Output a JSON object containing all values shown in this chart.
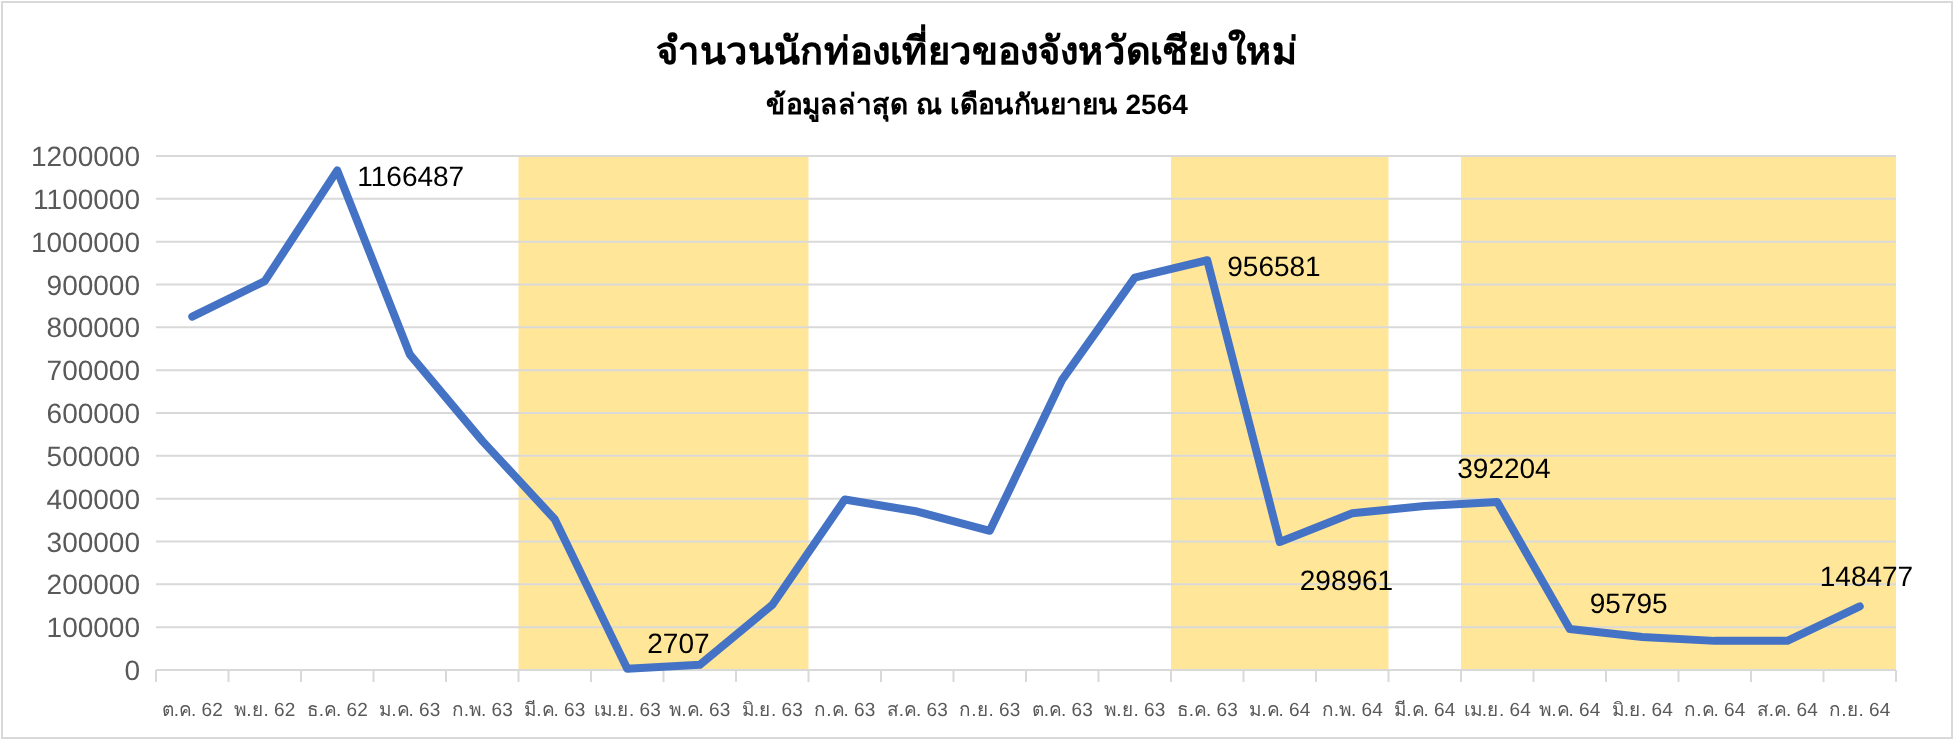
{
  "chart_data": {
    "type": "line",
    "title": "จำนวนนักท่องเที่ยวของจังหวัดเชียงใหม่",
    "subtitle": "ข้อมูลล่าสุด ณ เดือนกันยายน 2564",
    "categories": [
      "ต.ค. 62",
      "พ.ย. 62",
      "ธ.ค. 62",
      "ม.ค. 63",
      "ก.พ. 63",
      "มี.ค. 63",
      "เม.ย. 63",
      "พ.ค. 63",
      "มิ.ย. 63",
      "ก.ค. 63",
      "ส.ค. 63",
      "ก.ย. 63",
      "ต.ค. 63",
      "พ.ย. 63",
      "ธ.ค. 63",
      "ม.ค. 64",
      "ก.พ. 64",
      "มี.ค. 64",
      "เม.ย. 64",
      "พ.ค. 64",
      "มิ.ย. 64",
      "ก.ค. 64",
      "ส.ค. 64",
      "ก.ย. 64"
    ],
    "series": [
      {
        "color": "#4472c4",
        "values": [
          825000,
          908000,
          1166487,
          737000,
          535000,
          352000,
          2707,
          12000,
          152000,
          398000,
          370000,
          325000,
          678000,
          916000,
          956581,
          298961,
          366000,
          383000,
          392204,
          95795,
          77000,
          68000,
          68000,
          148477
        ],
        "value_labels": [
          null,
          null,
          "1166487",
          null,
          null,
          null,
          "2707",
          null,
          null,
          null,
          null,
          null,
          null,
          null,
          "956581",
          "298961",
          null,
          null,
          "392204",
          "95795",
          null,
          null,
          null,
          "148477"
        ]
      }
    ],
    "ylim": [
      0,
      1200000
    ],
    "yticks": [
      0,
      100000,
      200000,
      300000,
      400000,
      500000,
      600000,
      700000,
      800000,
      900000,
      1000000,
      1100000,
      1200000
    ],
    "grid": "y",
    "marker": "none",
    "line_style": "solid",
    "bands": [
      {
        "axis": "x",
        "from": "มี.ค. 63",
        "to": "มิ.ย. 63",
        "color": "#ffe699"
      },
      {
        "axis": "x",
        "from": "ธ.ค. 63",
        "to": "ก.พ. 64",
        "color": "#ffe699"
      },
      {
        "axis": "x",
        "from": "เม.ย. 64",
        "to": "ก.ย. 64",
        "color": "#ffe699"
      }
    ]
  }
}
